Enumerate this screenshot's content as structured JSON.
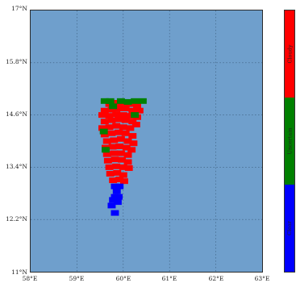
{
  "map": {
    "lat_labels": [
      "17°N",
      "15.8°N",
      "14.6°N",
      "13.4°N",
      "12.2°N",
      "11°N"
    ],
    "lon_labels": [
      "58°E",
      "59°E",
      "60°E",
      "61°E",
      "62°E",
      "63°E"
    ],
    "extent": {
      "lon_min": 58,
      "lon_max": 63,
      "lat_min": 11,
      "lat_max": 17
    },
    "ocean_color": "#6f9fcc"
  },
  "legend": {
    "items": [
      {
        "label": "Cloudy",
        "color": "#ff0000"
      },
      {
        "label": "Uncertain",
        "color": "#008000"
      },
      {
        "label": "Clear",
        "color": "#0000ff"
      }
    ]
  },
  "chart_data": {
    "type": "heatmap",
    "xlim": [
      58,
      63
    ],
    "ylim": [
      11,
      17
    ],
    "grid": true,
    "legend_position": "right",
    "series": [
      {
        "name": "Cloudy",
        "color": "#ff0000",
        "pixels": [
          [
            59.7,
            14.85
          ],
          [
            59.85,
            14.88
          ],
          [
            60.0,
            14.88
          ],
          [
            60.15,
            14.85
          ],
          [
            60.3,
            14.82
          ],
          [
            60.35,
            14.7
          ],
          [
            59.6,
            14.7
          ],
          [
            59.75,
            14.72
          ],
          [
            59.9,
            14.75
          ],
          [
            60.05,
            14.75
          ],
          [
            60.2,
            14.7
          ],
          [
            59.55,
            14.6
          ],
          [
            59.7,
            14.58
          ],
          [
            59.85,
            14.62
          ],
          [
            60.0,
            14.6
          ],
          [
            60.15,
            14.58
          ],
          [
            60.3,
            14.55
          ],
          [
            59.6,
            14.45
          ],
          [
            59.75,
            14.48
          ],
          [
            59.9,
            14.5
          ],
          [
            60.05,
            14.48
          ],
          [
            60.2,
            14.45
          ],
          [
            60.28,
            14.38
          ],
          [
            59.55,
            14.3
          ],
          [
            59.7,
            14.32
          ],
          [
            59.85,
            14.35
          ],
          [
            60.0,
            14.32
          ],
          [
            60.15,
            14.3
          ],
          [
            59.6,
            14.15
          ],
          [
            59.75,
            14.18
          ],
          [
            59.9,
            14.2
          ],
          [
            60.05,
            14.18
          ],
          [
            60.2,
            14.12
          ],
          [
            59.65,
            14.0
          ],
          [
            59.8,
            14.02
          ],
          [
            59.95,
            14.05
          ],
          [
            60.1,
            14.0
          ],
          [
            60.22,
            13.95
          ],
          [
            59.62,
            13.85
          ],
          [
            59.77,
            13.87
          ],
          [
            59.92,
            13.88
          ],
          [
            60.07,
            13.85
          ],
          [
            60.18,
            13.8
          ],
          [
            59.65,
            13.7
          ],
          [
            59.8,
            13.72
          ],
          [
            59.95,
            13.72
          ],
          [
            60.1,
            13.68
          ],
          [
            59.67,
            13.55
          ],
          [
            59.82,
            13.58
          ],
          [
            59.97,
            13.57
          ],
          [
            60.1,
            13.52
          ],
          [
            59.7,
            13.4
          ],
          [
            59.85,
            13.42
          ],
          [
            60.0,
            13.4
          ],
          [
            60.12,
            13.38
          ],
          [
            59.72,
            13.25
          ],
          [
            59.87,
            13.27
          ],
          [
            60.0,
            13.22
          ],
          [
            59.78,
            13.1
          ],
          [
            59.92,
            13.12
          ],
          [
            60.02,
            13.08
          ]
        ]
      },
      {
        "name": "Uncertain",
        "color": "#008000",
        "pixels": [
          [
            59.6,
            14.92
          ],
          [
            59.72,
            14.92
          ],
          [
            59.95,
            14.92
          ],
          [
            60.1,
            14.9
          ],
          [
            60.25,
            14.92
          ],
          [
            60.42,
            14.92
          ],
          [
            59.78,
            14.8
          ],
          [
            60.25,
            14.6
          ],
          [
            59.62,
            13.8
          ],
          [
            59.58,
            14.22
          ]
        ]
      },
      {
        "name": "Clear",
        "color": "#0000ff",
        "pixels": [
          [
            59.82,
            12.96
          ],
          [
            59.92,
            12.96
          ],
          [
            59.86,
            12.85
          ],
          [
            59.82,
            12.72
          ],
          [
            59.9,
            12.72
          ],
          [
            59.78,
            12.65
          ],
          [
            59.88,
            12.6
          ],
          [
            59.75,
            12.52
          ],
          [
            59.82,
            12.35
          ]
        ]
      }
    ]
  }
}
